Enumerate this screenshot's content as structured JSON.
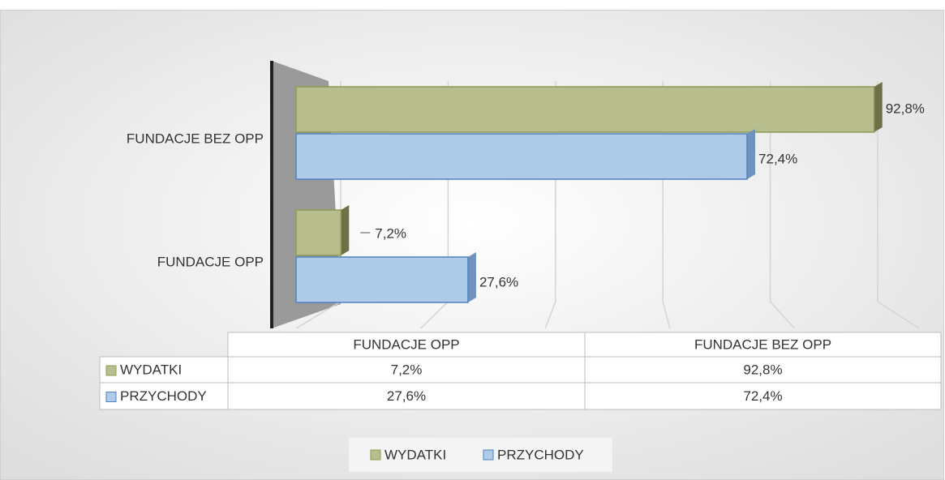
{
  "chart_data": {
    "type": "bar",
    "orientation": "horizontal",
    "categories": [
      "FUNDACJE OPP",
      "FUNDACJE BEZ OPP"
    ],
    "series": [
      {
        "name": "WYDATKI",
        "color": "#b8bd8e",
        "values": [
          7.2,
          92.8
        ],
        "value_labels": [
          "7,2%",
          "92,8%"
        ]
      },
      {
        "name": "PRZYCHODY",
        "color": "#aecbe8",
        "values": [
          27.6,
          72.4
        ],
        "value_labels": [
          "27,6%",
          "72,4%"
        ]
      }
    ],
    "xlim": [
      0,
      100
    ],
    "xticks": [
      0,
      20,
      40,
      60,
      80,
      100
    ],
    "grid": true,
    "legend": "bottom",
    "data_table": true
  }
}
